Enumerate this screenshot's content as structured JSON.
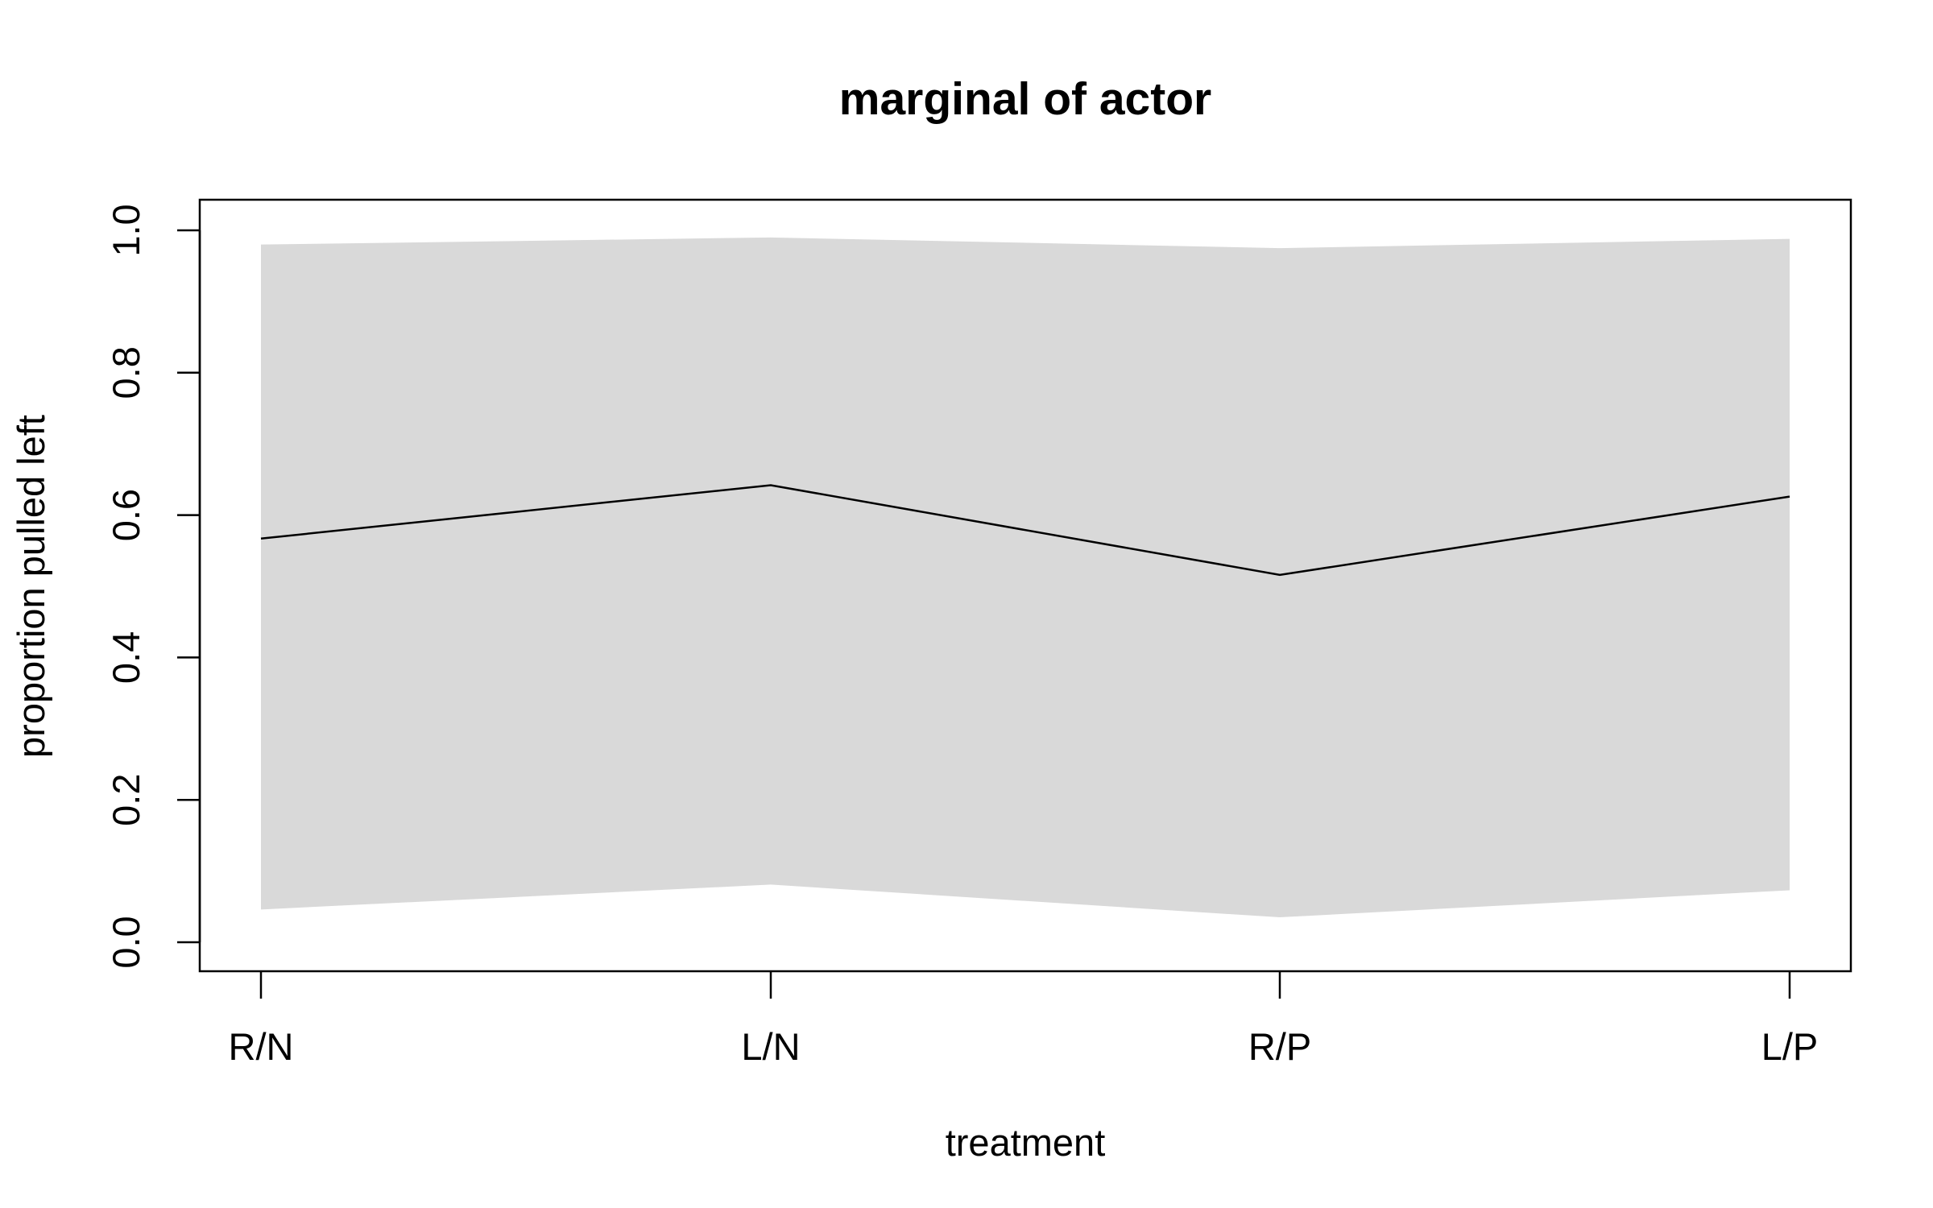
{
  "chart_data": {
    "type": "line",
    "title": "marginal of actor",
    "xlabel": "treatment",
    "ylabel": "proportion pulled left",
    "categories": [
      "R/N",
      "L/N",
      "R/P",
      "L/P"
    ],
    "series": [
      {
        "values": [
          0.567,
          0.642,
          0.516,
          0.626
        ]
      }
    ],
    "interval": {
      "lower": [
        0.046,
        0.081,
        0.035,
        0.073
      ],
      "upper": [
        0.98,
        0.99,
        0.975,
        0.988
      ]
    },
    "ylim": [
      0.0,
      1.0
    ],
    "yticks": [
      "0.0",
      "0.2",
      "0.4",
      "0.6",
      "0.8",
      "1.0"
    ],
    "grid": false,
    "colors": {
      "line": "#000000",
      "band": "#d9d9d9",
      "frame": "#000000"
    }
  }
}
